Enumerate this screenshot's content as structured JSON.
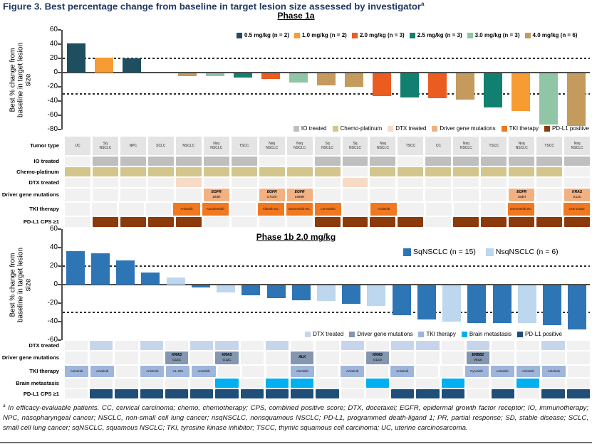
{
  "title": {
    "text": "Figure 3. Best percentage change from baseline in target lesion size assessed by investigator",
    "superscript": "a"
  },
  "ylabel": "Best % change from\nbaseline in target lesion\nsize",
  "colors": {
    "title_navy": "#1F3864",
    "axis": "#4D4D4D",
    "empty_cell": "#F1F1F1",
    "header_cell": "#E4E4E4"
  },
  "chart_data": [
    {
      "type": "bar",
      "title": "Phase 1a",
      "ylabel": "Best % change from baseline in target lesion size",
      "ylim": [
        -80,
        60
      ],
      "yticks": [
        60,
        40,
        20,
        0,
        -20,
        -40,
        -60,
        -80
      ],
      "reference_lines": [
        20,
        -30
      ],
      "dose_legend": [
        {
          "label": "0.5 mg/kg (n = 2)",
          "color": "#1F4E5F"
        },
        {
          "label": "1.0 mg/kg (n = 2)",
          "color": "#F79B33"
        },
        {
          "label": "2.0 mg/kg (n = 3)",
          "color": "#EB5C20"
        },
        {
          "label": "2.5 mg/kg (n = 3)",
          "color": "#128070"
        },
        {
          "label": "3.0 mg/kg (n = 3)",
          "color": "#90C5A5"
        },
        {
          "label": "4.0 mg/kg (n = 6)",
          "color": "#C49A5D"
        }
      ],
      "bars": [
        {
          "value": 41,
          "dose": "0.5"
        },
        {
          "value": 21,
          "dose": "1.0"
        },
        {
          "value": 20,
          "dose": "0.5"
        },
        {
          "value": 0,
          "dose": "4.0"
        },
        {
          "value": -4,
          "dose": "4.0"
        },
        {
          "value": -4,
          "dose": "3.0"
        },
        {
          "value": -6,
          "dose": "2.5"
        },
        {
          "value": -8,
          "dose": "2.0"
        },
        {
          "value": -13,
          "dose": "3.0"
        },
        {
          "value": -17,
          "dose": "4.0"
        },
        {
          "value": -19,
          "dose": "4.0"
        },
        {
          "value": -32,
          "dose": "2.0"
        },
        {
          "value": -34,
          "dose": "2.5"
        },
        {
          "value": -35,
          "dose": "2.0"
        },
        {
          "value": -37,
          "dose": "4.0"
        },
        {
          "value": -48,
          "dose": "2.5"
        },
        {
          "value": -53,
          "dose": "1.0"
        },
        {
          "value": -72,
          "dose": "3.0"
        },
        {
          "value": -74,
          "dose": "4.0"
        }
      ],
      "category_legend": [
        {
          "label": "IO treated",
          "color": "#BFBFBF"
        },
        {
          "label": "Chemo-platinum",
          "color": "#D2C68C"
        },
        {
          "label": "DTX treated",
          "color": "#F7DBC6"
        },
        {
          "label": "Driver gene mutations",
          "color": "#F2B183"
        },
        {
          "label": "TKI therapy",
          "color": "#F07820"
        },
        {
          "label": "PD-L1 positive",
          "color": "#8B3A0B"
        }
      ],
      "annotation_rows": [
        {
          "id": "tumor",
          "label": "Tumor type"
        },
        {
          "id": "io",
          "label": "IO treated",
          "color": "#BFBFBF"
        },
        {
          "id": "chemo",
          "label": "Chemo-platinum",
          "color": "#D2C68C"
        },
        {
          "id": "dtx",
          "label": "DTX treated",
          "color": "#F7DBC6"
        },
        {
          "id": "driver",
          "label": "Driver gene mutations",
          "color": "#F2B183"
        },
        {
          "id": "tki",
          "label": "TKI therapy",
          "color": "#F07820"
        },
        {
          "id": "pdl1",
          "label": "PD-L1 CPS ≥1",
          "color": "#8B3A0B"
        }
      ],
      "patients": [
        {
          "tumor": "UC",
          "io": false,
          "chemo": true,
          "dtx": false,
          "driver": null,
          "tki": null,
          "pdl1": false
        },
        {
          "tumor": "Sq\nNSCLC",
          "io": true,
          "chemo": true,
          "dtx": false,
          "driver": null,
          "tki": null,
          "pdl1": true
        },
        {
          "tumor": "NPC",
          "io": true,
          "chemo": true,
          "dtx": false,
          "driver": null,
          "tki": null,
          "pdl1": true
        },
        {
          "tumor": "SCLC",
          "io": true,
          "chemo": true,
          "dtx": false,
          "driver": null,
          "tki": null,
          "pdl1": true
        },
        {
          "tumor": "NSCLC",
          "io": true,
          "chemo": true,
          "dtx": true,
          "driver": null,
          "tki": "Anlotinib",
          "pdl1": true
        },
        {
          "tumor": "Nsq\nNSCLC",
          "io": true,
          "chemo": true,
          "dtx": false,
          "driver": {
            "gene": "EGFR",
            "variant": "19del"
          },
          "tki": "Aumolertinib",
          "pdl1": false
        },
        {
          "tumor": "TSCC",
          "io": true,
          "chemo": true,
          "dtx": false,
          "driver": null,
          "tki": null,
          "pdl1": false
        },
        {
          "tumor": "Nsq\nNSCLC",
          "io": false,
          "chemo": true,
          "dtx": false,
          "driver": {
            "gene": "EGFR",
            "variant": "G719X"
          },
          "tki": "Afatinib etc.",
          "pdl1": false
        },
        {
          "tumor": "Nsq\nNSCLC",
          "io": false,
          "chemo": true,
          "dtx": false,
          "driver": {
            "gene": "EGFR",
            "variant": "L858R"
          },
          "tki": "Osimertinib etc.",
          "pdl1": false
        },
        {
          "tumor": "Sq\nNSCLC",
          "io": true,
          "chemo": true,
          "dtx": false,
          "driver": null,
          "tki": "Lenvatinib",
          "pdl1": true
        },
        {
          "tumor": "Sq\nNSCLC",
          "io": true,
          "chemo": false,
          "dtx": true,
          "driver": null,
          "tki": null,
          "pdl1": true
        },
        {
          "tumor": "Nsq\nNSCLC",
          "io": true,
          "chemo": true,
          "dtx": false,
          "driver": null,
          "tki": "Anlotinib",
          "pdl1": true
        },
        {
          "tumor": "TSCC",
          "io": false,
          "chemo": true,
          "dtx": false,
          "driver": null,
          "tki": null,
          "pdl1": true
        },
        {
          "tumor": "CC",
          "io": true,
          "chemo": true,
          "dtx": false,
          "driver": null,
          "tki": null,
          "pdl1": false
        },
        {
          "tumor": "Nsq\nNSCLC",
          "io": true,
          "chemo": true,
          "dtx": false,
          "driver": null,
          "tki": null,
          "pdl1": true
        },
        {
          "tumor": "TSCC",
          "io": true,
          "chemo": true,
          "dtx": false,
          "driver": null,
          "tki": null,
          "pdl1": true
        },
        {
          "tumor": "Nsq\nNSCLC",
          "io": true,
          "chemo": true,
          "dtx": false,
          "driver": {
            "gene": "EGFR",
            "variant": "19del"
          },
          "tki": "Osimertinib etc.",
          "pdl1": true
        },
        {
          "tumor": "TSCC",
          "io": true,
          "chemo": true,
          "dtx": false,
          "driver": null,
          "tki": null,
          "pdl1": true
        },
        {
          "tumor": "Nsq\nNSCLC",
          "io": true,
          "chemo": false,
          "dtx": false,
          "driver": {
            "gene": "KRAS",
            "variant": "G12C"
          },
          "tki": "JAB-21822",
          "pdl1": true
        }
      ]
    },
    {
      "type": "bar",
      "title": "Phase 1b 2.0 mg/kg",
      "ylabel": "Best % change from baseline in target lesion size",
      "ylim": [
        -60,
        60
      ],
      "yticks": [
        60,
        40,
        20,
        0,
        -20,
        -40,
        -60
      ],
      "reference_lines": [
        20,
        -30
      ],
      "series_legend": [
        {
          "label": "SqNSCLC (n = 15)",
          "color": "#2E75B6"
        },
        {
          "label": "NsqNSCLC (n = 6)",
          "color": "#BDD7EE"
        }
      ],
      "bars": [
        {
          "value": 36,
          "series": "SqNSCLC"
        },
        {
          "value": 34,
          "series": "SqNSCLC"
        },
        {
          "value": 26,
          "series": "SqNSCLC"
        },
        {
          "value": 13,
          "series": "SqNSCLC"
        },
        {
          "value": 8,
          "series": "NsqNSCLC"
        },
        {
          "value": -2,
          "series": "SqNSCLC"
        },
        {
          "value": -8,
          "series": "NsqNSCLC"
        },
        {
          "value": -11,
          "series": "SqNSCLC"
        },
        {
          "value": -14,
          "series": "SqNSCLC"
        },
        {
          "value": -16,
          "series": "SqNSCLC"
        },
        {
          "value": -17,
          "series": "NsqNSCLC"
        },
        {
          "value": -20,
          "series": "SqNSCLC"
        },
        {
          "value": -22,
          "series": "NsqNSCLC"
        },
        {
          "value": -32,
          "series": "SqNSCLC"
        },
        {
          "value": -37,
          "series": "SqNSCLC"
        },
        {
          "value": -39,
          "series": "NsqNSCLC"
        },
        {
          "value": -41,
          "series": "SqNSCLC"
        },
        {
          "value": -41,
          "series": "SqNSCLC"
        },
        {
          "value": -41,
          "series": "NsqNSCLC"
        },
        {
          "value": -43,
          "series": "SqNSCLC"
        },
        {
          "value": -48,
          "series": "SqNSCLC"
        }
      ],
      "category_legend": [
        {
          "label": "DTX treated",
          "color": "#C7D5EC"
        },
        {
          "label": "Driver gene mutations",
          "color": "#8496B0"
        },
        {
          "label": "TKI therapy",
          "color": "#9FB5DB"
        },
        {
          "label": "Brain metastasis",
          "color": "#00B0F0"
        },
        {
          "label": "PD-L1 positive",
          "color": "#1F4E79"
        }
      ],
      "annotation_rows": [
        {
          "id": "dtx",
          "label": "DTX treated",
          "color": "#C7D5EC"
        },
        {
          "id": "driver",
          "label": "Driver gene mutations",
          "color": "#8496B0"
        },
        {
          "id": "tki",
          "label": "TKI therapy",
          "color": "#9FB5DB"
        },
        {
          "id": "brain",
          "label": "Brain metastasis",
          "color": "#00B0F0"
        },
        {
          "id": "pdl1",
          "label": "PD-L1 CPS ≥1",
          "color": "#1F4E79"
        }
      ],
      "patients": [
        {
          "dtx": false,
          "driver": null,
          "tki": "Anlotinib",
          "brain": false,
          "pdl1": false
        },
        {
          "dtx": true,
          "driver": null,
          "tki": "Anlotinib",
          "brain": false,
          "pdl1": true
        },
        {
          "dtx": false,
          "driver": null,
          "tki": null,
          "brain": false,
          "pdl1": true
        },
        {
          "dtx": true,
          "driver": null,
          "tki": "Anlotinib",
          "brain": false,
          "pdl1": true
        },
        {
          "dtx": false,
          "driver": {
            "gene": "KRAS",
            "variant": "G12C"
          },
          "tki": "HL-091",
          "brain": false,
          "pdl1": true
        },
        {
          "dtx": true,
          "driver": null,
          "tki": "Anlotinib",
          "brain": false,
          "pdl1": true
        },
        {
          "dtx": true,
          "driver": {
            "gene": "KRAS",
            "variant": "G12C"
          },
          "tki": null,
          "brain": true,
          "pdl1": true
        },
        {
          "dtx": false,
          "driver": null,
          "tki": null,
          "brain": false,
          "pdl1": true
        },
        {
          "dtx": true,
          "driver": null,
          "tki": null,
          "brain": true,
          "pdl1": true
        },
        {
          "dtx": false,
          "driver": {
            "gene": "ALK",
            "variant": ""
          },
          "tki": "Alectinib",
          "brain": true,
          "pdl1": true
        },
        {
          "dtx": false,
          "driver": null,
          "tki": null,
          "brain": false,
          "pdl1": true
        },
        {
          "dtx": true,
          "driver": null,
          "tki": "Anlotinib",
          "brain": false,
          "pdl1": false
        },
        {
          "dtx": false,
          "driver": {
            "gene": "KRAS",
            "variant": "G12D"
          },
          "tki": null,
          "brain": true,
          "pdl1": false
        },
        {
          "dtx": true,
          "driver": null,
          "tki": "Anlotinib",
          "brain": false,
          "pdl1": true
        },
        {
          "dtx": true,
          "driver": null,
          "tki": null,
          "brain": false,
          "pdl1": true
        },
        {
          "dtx": false,
          "driver": null,
          "tki": null,
          "brain": true,
          "pdl1": true
        },
        {
          "dtx": true,
          "driver": {
            "gene": "ERBB2",
            "variant": "V842I"
          },
          "tki": "Pyrotinib",
          "brain": false,
          "pdl1": false
        },
        {
          "dtx": false,
          "driver": null,
          "tki": "Anlotinib",
          "brain": false,
          "pdl1": true
        },
        {
          "dtx": false,
          "driver": null,
          "tki": "Anlotinib",
          "brain": true,
          "pdl1": false
        },
        {
          "dtx": true,
          "driver": null,
          "tki": "Anlotinib",
          "brain": false,
          "pdl1": true
        },
        {
          "dtx": false,
          "driver": null,
          "tki": null,
          "brain": false,
          "pdl1": true
        }
      ]
    }
  ],
  "footnote": {
    "superscript": "a",
    "text": "In efficacy-evaluable patients. CC, cervical carcinoma; chemo, chemotherapy; CPS, combined positive score; DTX, docetaxel; EGFR, epidermal growth factor receptor; IO, immunotherapy; NPC, nasopharyngeal cancer; NSCLC, non-small cell lung cancer; nsqNSCLC, nonsquamous NSCLC; PD-L1, programmed death-ligand 1; PR, partial response; SD, stable disease; SCLC, small cell lung cancer; sqNSCLC, squamous NSCLC; TKI, tyrosine kinase inhibitor; TSCC, thymic squamous cell carcinoma; UC, uterine carcinosarcoma."
  }
}
